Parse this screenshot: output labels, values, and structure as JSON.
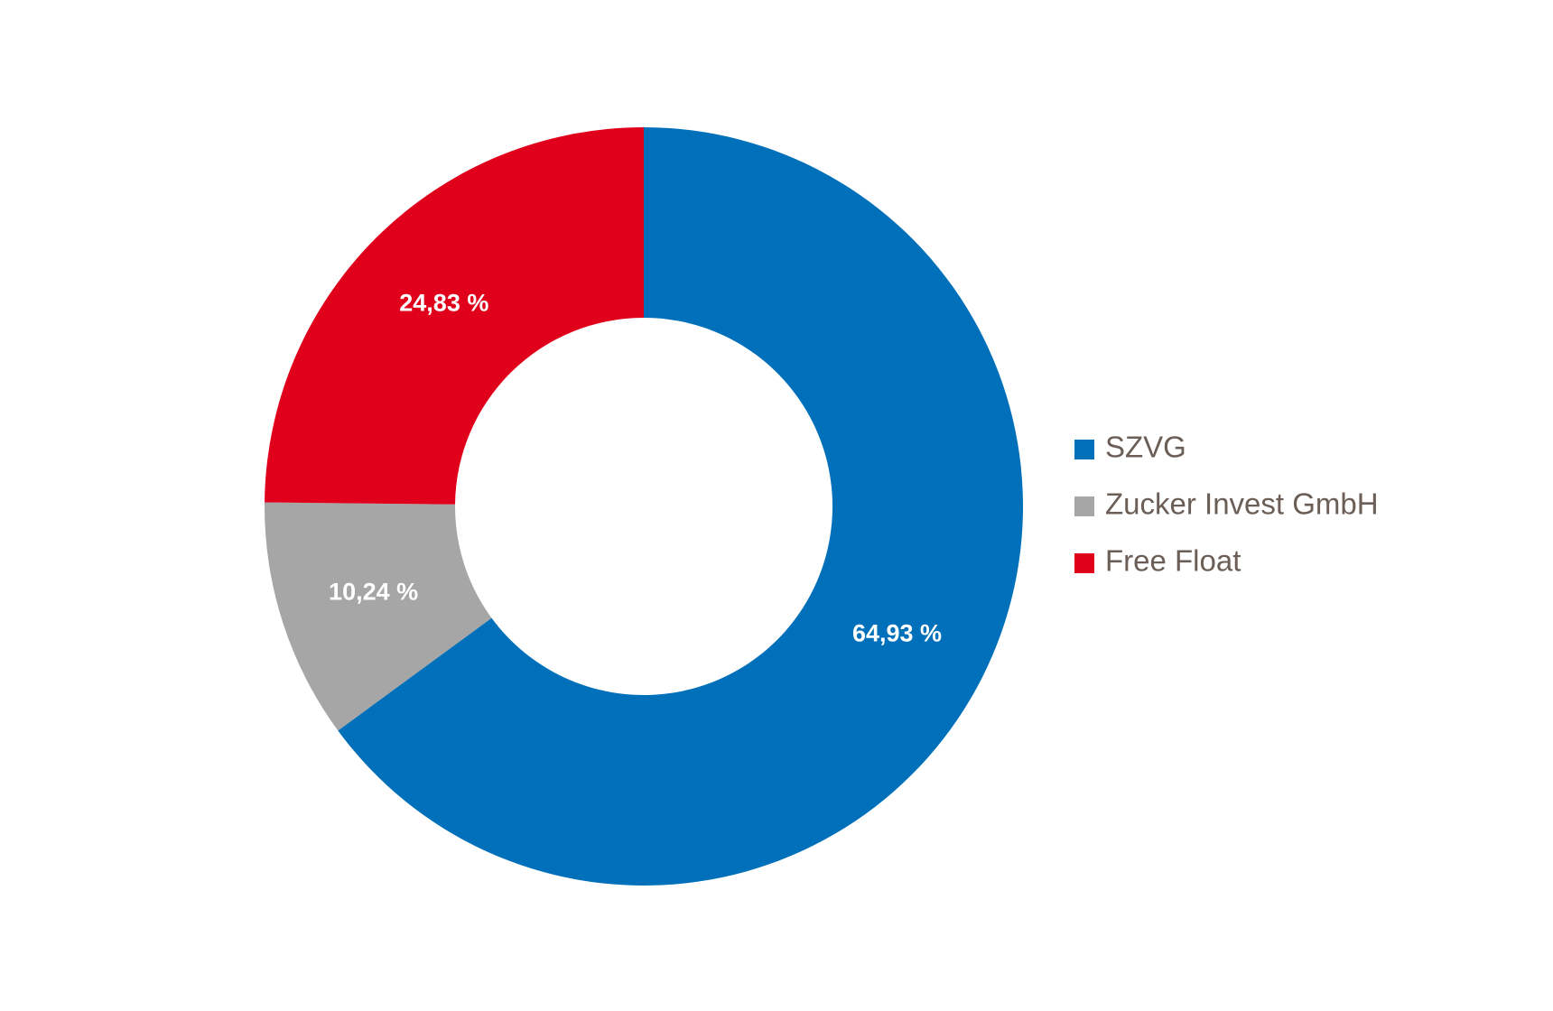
{
  "chart_data": {
    "type": "pie",
    "categories": [
      "SZVG",
      "Zucker Invest GmbH",
      "Free Float"
    ],
    "values": [
      64.93,
      10.24,
      24.83
    ],
    "value_labels": [
      "64,93 %",
      "10,24 %",
      "24,83 %"
    ],
    "colors": [
      "#0070ba",
      "#a6a6a6",
      "#e0001b"
    ],
    "legend": "right"
  }
}
